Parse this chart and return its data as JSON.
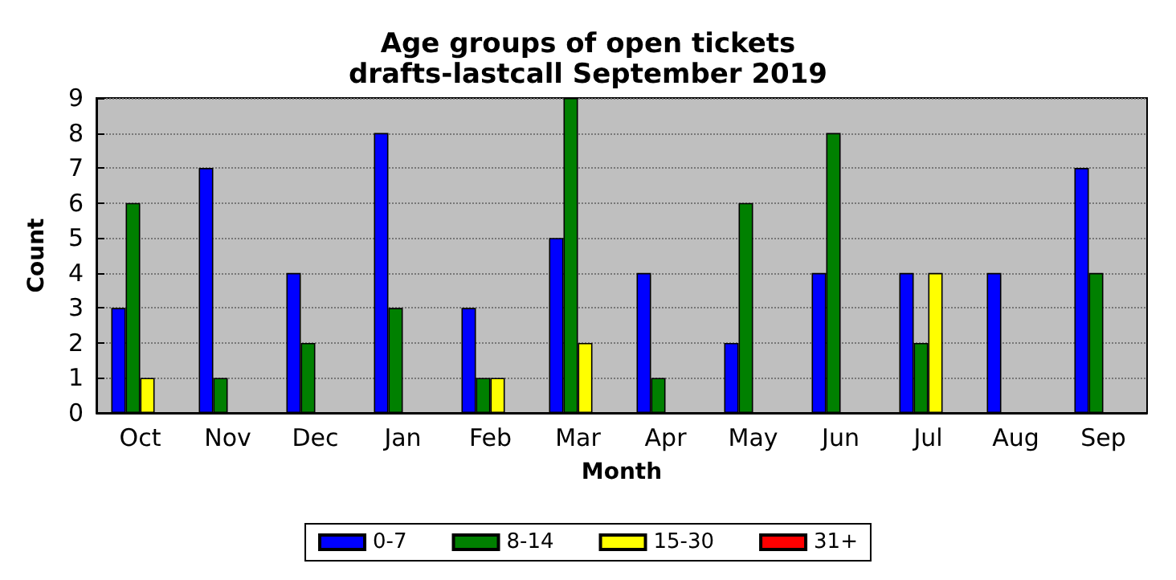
{
  "chart_data": {
    "type": "bar",
    "title": "Age groups of open tickets",
    "subtitle": "drafts-lastcall September 2019",
    "xlabel": "Month",
    "ylabel": "Count",
    "categories": [
      "Oct",
      "Nov",
      "Dec",
      "Jan",
      "Feb",
      "Mar",
      "Apr",
      "May",
      "Jun",
      "Jul",
      "Aug",
      "Sep"
    ],
    "series": [
      {
        "name": "0-7",
        "color": "#0000ff",
        "values": [
          3,
          7,
          4,
          8,
          3,
          5,
          4,
          2,
          4,
          4,
          4,
          7
        ]
      },
      {
        "name": "8-14",
        "color": "#008000",
        "values": [
          6,
          1,
          2,
          3,
          1,
          9,
          1,
          6,
          8,
          2,
          0,
          4
        ]
      },
      {
        "name": "15-30",
        "color": "#ffff00",
        "values": [
          1,
          0,
          0,
          0,
          1,
          2,
          0,
          0,
          0,
          4,
          0,
          0
        ]
      },
      {
        "name": "31+",
        "color": "#ff0000",
        "values": [
          0,
          0,
          0,
          0,
          0,
          0,
          0,
          0,
          0,
          0,
          0,
          0
        ]
      }
    ],
    "ylim": [
      0,
      9
    ],
    "yticks": [
      0,
      1,
      2,
      3,
      4,
      5,
      6,
      7,
      8,
      9
    ],
    "grid": "y",
    "legend": "bottom"
  }
}
